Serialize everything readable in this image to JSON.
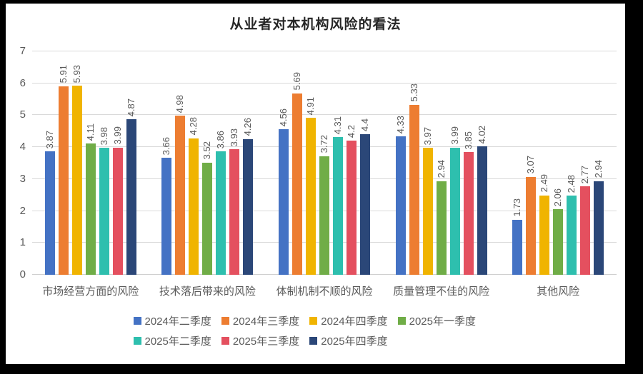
{
  "chart_data": {
    "type": "bar",
    "title": "从业者对本机构风险的看法",
    "categories": [
      "市场经营方面的风险",
      "技术落后带来的风险",
      "体制机制不顺的风险",
      "质量管理不佳的风险",
      "其他风险"
    ],
    "series": [
      {
        "name": "2024年二季度",
        "color": "#4472C4",
        "values": [
          3.87,
          3.66,
          4.56,
          4.33,
          1.73
        ]
      },
      {
        "name": "2024年三季度",
        "color": "#ED7D31",
        "values": [
          5.91,
          4.98,
          5.69,
          5.33,
          3.07
        ]
      },
      {
        "name": "2024年四季度",
        "color": "#F0B400",
        "values": [
          5.93,
          4.28,
          4.91,
          3.97,
          2.49
        ]
      },
      {
        "name": "2025年一季度",
        "color": "#70AD47",
        "values": [
          4.11,
          3.52,
          3.72,
          2.94,
          2.06
        ]
      },
      {
        "name": "2025年二季度",
        "color": "#2EBFAE",
        "values": [
          3.98,
          3.86,
          4.31,
          3.99,
          2.48
        ]
      },
      {
        "name": "2025年三季度",
        "color": "#E4505F",
        "values": [
          3.99,
          3.93,
          4.2,
          3.85,
          2.77
        ]
      },
      {
        "name": "2025年四季度",
        "color": "#2B4778",
        "values": [
          4.87,
          4.26,
          4.4,
          4.02,
          2.94
        ]
      }
    ],
    "xlabel": "",
    "ylabel": "",
    "ylim": [
      0,
      7
    ],
    "yticks": [
      0,
      1,
      2,
      3,
      4,
      5,
      6,
      7
    ],
    "grid": true,
    "gridline_color": "#D9D9D9",
    "label_color": "#595959",
    "data_labels": "rotated-vertical",
    "legend_position": "bottom",
    "legend_rows": [
      [
        0,
        1,
        2,
        3
      ],
      [
        4,
        5,
        6
      ]
    ],
    "frame_color": "#000000",
    "background_color": "#FFFFFF"
  }
}
